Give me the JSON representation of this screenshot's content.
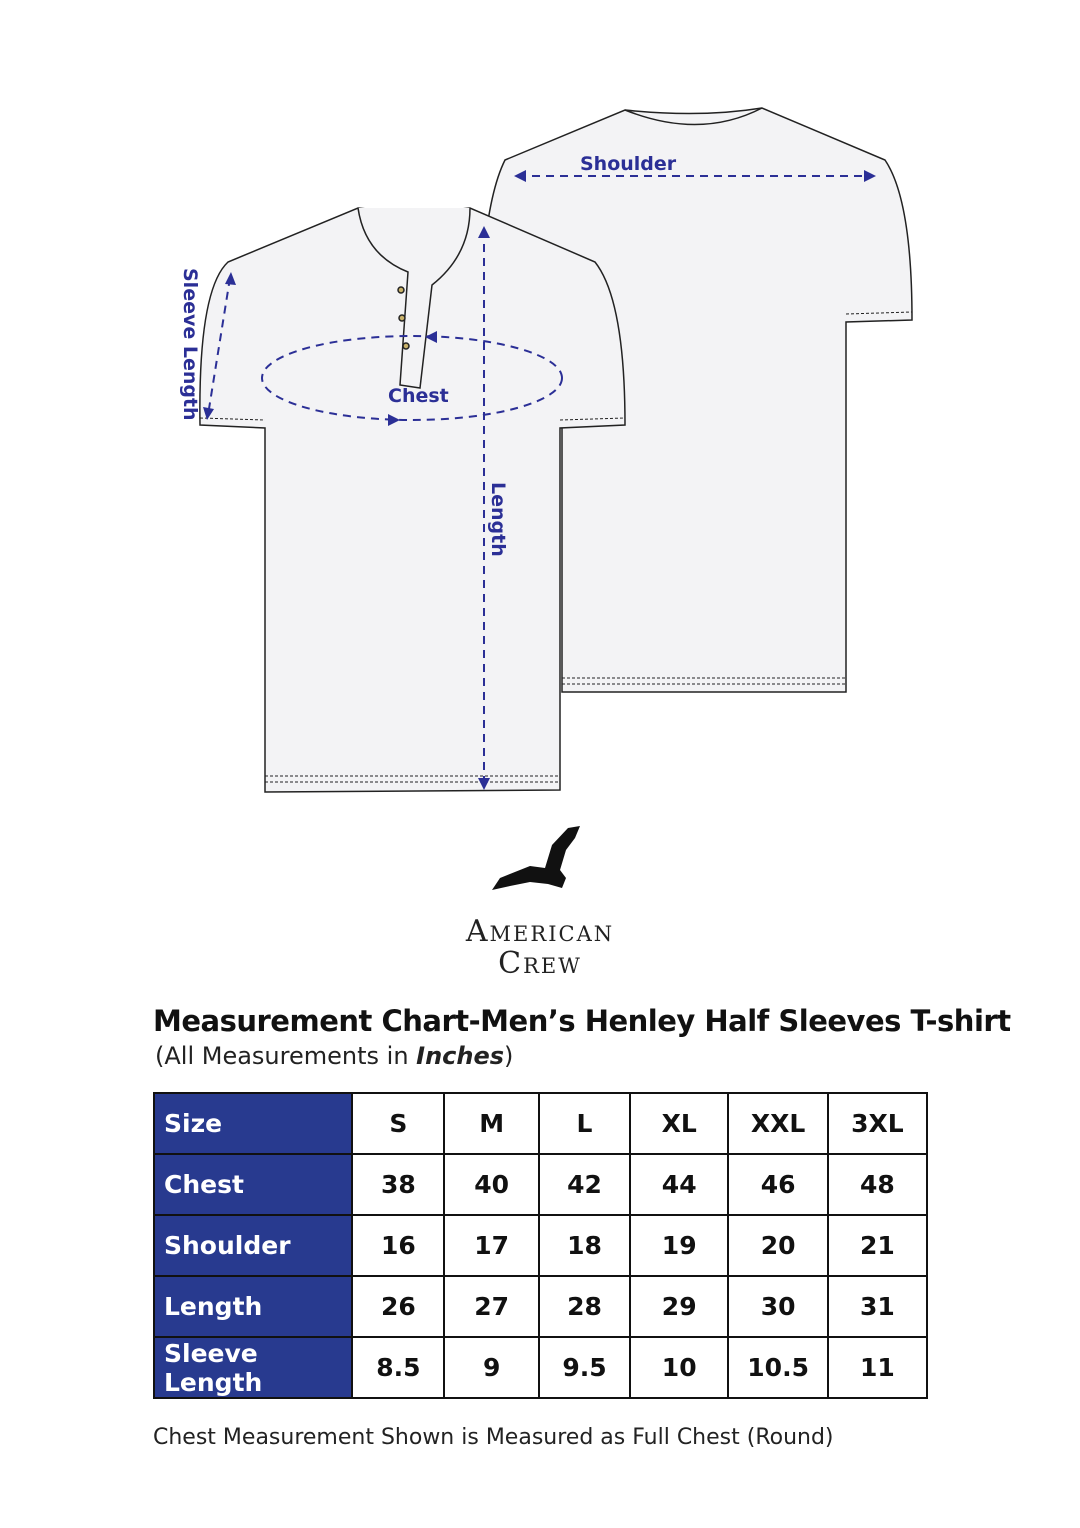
{
  "diagram": {
    "labels": {
      "shoulder": "Shoulder",
      "chest": "Chest",
      "length": "Length",
      "sleeve_length": "Sleeve Length"
    },
    "annotation_color": "#2b2f96"
  },
  "brand": {
    "line1": "American",
    "line2": "Crew",
    "logo": "eagle-icon"
  },
  "title": "Measurement Chart-Men’s Henley Half Sleeves T-shirt",
  "subtitle": {
    "prefix": "(All Measurements in ",
    "unit": "Inches",
    "suffix": ")"
  },
  "table": {
    "header_color": "#283a8f",
    "header": {
      "label": "Size",
      "sizes": [
        "S",
        "M",
        "L",
        "XL",
        "XXL",
        "3XL"
      ]
    },
    "rows": [
      {
        "label": "Chest",
        "values": [
          "38",
          "40",
          "42",
          "44",
          "46",
          "48"
        ]
      },
      {
        "label": "Shoulder",
        "values": [
          "16",
          "17",
          "18",
          "19",
          "20",
          "21"
        ]
      },
      {
        "label": "Length",
        "values": [
          "26",
          "27",
          "28",
          "29",
          "30",
          "31"
        ]
      },
      {
        "label": "Sleeve Length",
        "values": [
          "8.5",
          "9",
          "9.5",
          "10",
          "10.5",
          "11"
        ]
      }
    ]
  },
  "note": "Chest Measurement Shown is Measured as Full Chest (Round)"
}
